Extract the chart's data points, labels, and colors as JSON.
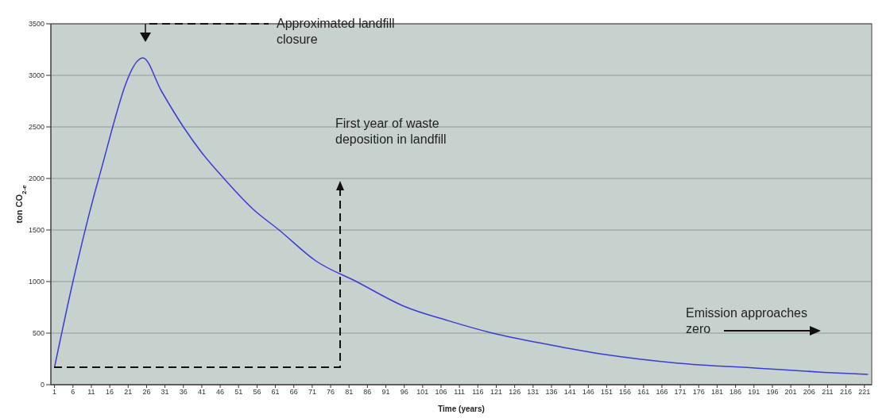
{
  "chart_data": {
    "type": "line",
    "xlabel": "Time (years)",
    "ylabel": "ton CO$_{2-e}$",
    "x": [
      1,
      6,
      13,
      25,
      30,
      36,
      41,
      47,
      55,
      62,
      72,
      83,
      96,
      108,
      120,
      135,
      151,
      170,
      192,
      210,
      222
    ],
    "series": [
      {
        "color": "#3b3bd6",
        "values": [
          170,
          1000,
          2000,
          3170,
          2850,
          2500,
          2250,
          2000,
          1700,
          1500,
          1200,
          1000,
          760,
          620,
          500,
          390,
          290,
          210,
          160,
          120,
          100
        ]
      }
    ],
    "xlim": [
      0,
      223
    ],
    "xticks": [
      1,
      6,
      11,
      16,
      21,
      26,
      31,
      36,
      41,
      46,
      51,
      56,
      61,
      66,
      71,
      76,
      81,
      86,
      91,
      96,
      101,
      106,
      111,
      116,
      121,
      126,
      131,
      136,
      141,
      146,
      151,
      156,
      161,
      166,
      171,
      176,
      181,
      186,
      191,
      196,
      201,
      206,
      211,
      216,
      221
    ],
    "ylim": [
      0,
      3500
    ],
    "yticks": [
      0,
      500,
      1000,
      1500,
      2000,
      2500,
      3000,
      3500
    ],
    "grid": "y",
    "marker": "none",
    "line_style": "solid",
    "legend": false,
    "annotations": [
      "Approximated landfill closure",
      "First year of waste deposition in landfill",
      "Emission approaches zero"
    ]
  }
}
